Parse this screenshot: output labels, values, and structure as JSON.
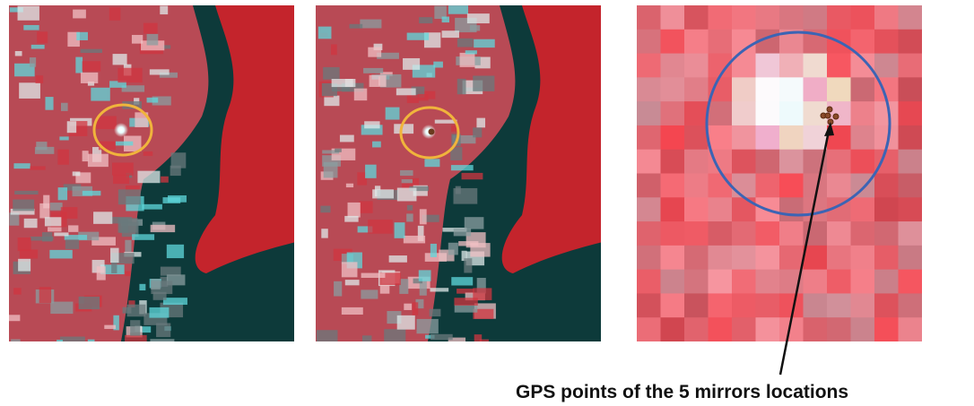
{
  "annotation": {
    "label": "GPS points of the 5 mirrors locations"
  }
}
